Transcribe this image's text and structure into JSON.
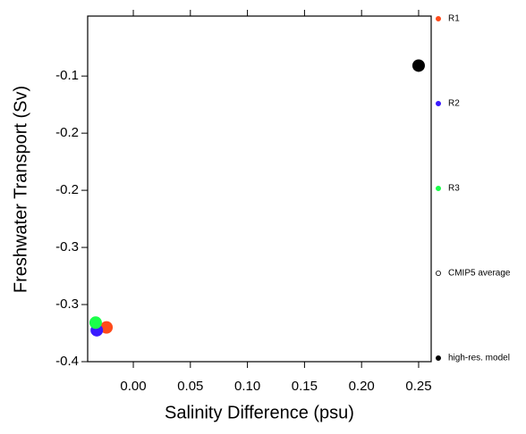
{
  "chart_data": {
    "type": "scatter",
    "x_label": "Salinity Difference (psu)",
    "y_label": "Freshwater Transport (Sv)",
    "xlim": [
      -0.04,
      0.261
    ],
    "ylim": [
      -0.4,
      -0.037
    ],
    "xticks": [
      {
        "value": 0,
        "label": "0.00"
      },
      {
        "value": 0.05,
        "label": "0.05"
      },
      {
        "value": 0.1,
        "label": "0.10"
      },
      {
        "value": 0.15,
        "label": "0.15"
      },
      {
        "value": 0.2,
        "label": "0.20"
      },
      {
        "value": 0.25,
        "label": "0.25"
      }
    ],
    "yticks": [
      -0.1,
      {
        "value": -0.16,
        "label": "-0.2"
      },
      {
        "value": -0.22,
        "label": "-0.2"
      },
      {
        "value": -0.28,
        "label": "-0.3"
      },
      {
        "value": -0.34,
        "label": "-0.3"
      },
      -0.4
    ],
    "series": [
      {
        "name": "R1",
        "color": "#ff4a1a",
        "filled": true,
        "x": [
          -0.0235
        ],
        "y": [
          -0.364
        ]
      },
      {
        "name": "R2",
        "color": "#3a1aff",
        "filled": true,
        "x": [
          -0.032
        ],
        "y": [
          -0.367
        ]
      },
      {
        "name": "R3",
        "color": "#1aff4a",
        "filled": true,
        "x": [
          -0.033
        ],
        "y": [
          -0.359
        ]
      },
      {
        "name": "CMIP5 average",
        "color": "#000000",
        "filled": false,
        "x": [],
        "y": []
      },
      {
        "name": "high-res. model",
        "color": "#000000",
        "filled": true,
        "x": [
          0.25
        ],
        "y": [
          -0.089
        ]
      }
    ]
  }
}
